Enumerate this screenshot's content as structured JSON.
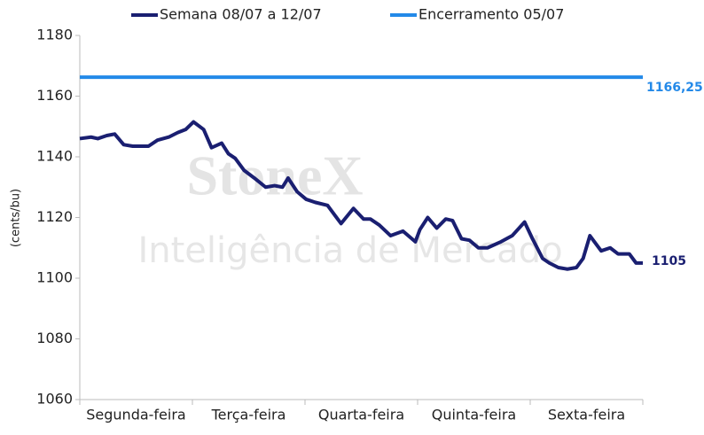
{
  "chart_data": {
    "type": "line",
    "y_label": "(cents/bu)",
    "watermark": [
      "StoneX",
      "Inteligência de Mercado"
    ],
    "categories": [
      "Segunda-feira",
      "Terça-feira",
      "Quarta-feira",
      "Quinta-feira",
      "Sexta-feira"
    ],
    "xlim": [
      0,
      5
    ],
    "ylim": [
      1060,
      1180
    ],
    "yticks": [
      1060,
      1080,
      1100,
      1120,
      1140,
      1160,
      1180
    ],
    "series": [
      {
        "name": "Semana 08/07 a 12/07",
        "color": "#1a1f71",
        "x": [
          0,
          0.1,
          0.16,
          0.24,
          0.31,
          0.39,
          0.47,
          0.55,
          0.61,
          0.69,
          0.79,
          0.87,
          0.94,
          1.01,
          1.1,
          1.17,
          1.26,
          1.32,
          1.38,
          1.46,
          1.55,
          1.65,
          1.73,
          1.8,
          1.85,
          1.93,
          2.01,
          2.09,
          2.2,
          2.27,
          2.32,
          2.43,
          2.52,
          2.58,
          2.66,
          2.76,
          2.87,
          2.98,
          3.02,
          3.09,
          3.17,
          3.25,
          3.31,
          3.39,
          3.46,
          3.54,
          3.62,
          3.74,
          3.84,
          3.95,
          4.02,
          4.11,
          4.17,
          4.25,
          4.33,
          4.41,
          4.47,
          4.53,
          4.63,
          4.71,
          4.78,
          4.88,
          4.94,
          5.0
        ],
        "values": [
          1146,
          1146.5,
          1146,
          1147,
          1147.5,
          1144,
          1143.5,
          1143.5,
          1143.5,
          1145.5,
          1146.5,
          1148,
          1149,
          1151.5,
          1149,
          1143,
          1144.5,
          1141,
          1139.5,
          1135.5,
          1133,
          1130,
          1130.5,
          1130,
          1133,
          1128.5,
          1126,
          1125,
          1124,
          1120.5,
          1118,
          1123,
          1119.5,
          1119.5,
          1117.5,
          1114,
          1115.5,
          1112,
          1116,
          1120,
          1116.5,
          1119.5,
          1119,
          1113,
          1112.5,
          1110,
          1110,
          1112,
          1114,
          1118.5,
          1113,
          1106.5,
          1105,
          1103.5,
          1103,
          1103.5,
          1106.5,
          1114,
          1109,
          1110,
          1108,
          1108,
          1105,
          1105
        ],
        "end_label": "1105"
      },
      {
        "name": "Encerramento 05/07",
        "color": "#2389e8",
        "value": 1166.25,
        "value_label": "1166,25"
      }
    ]
  }
}
